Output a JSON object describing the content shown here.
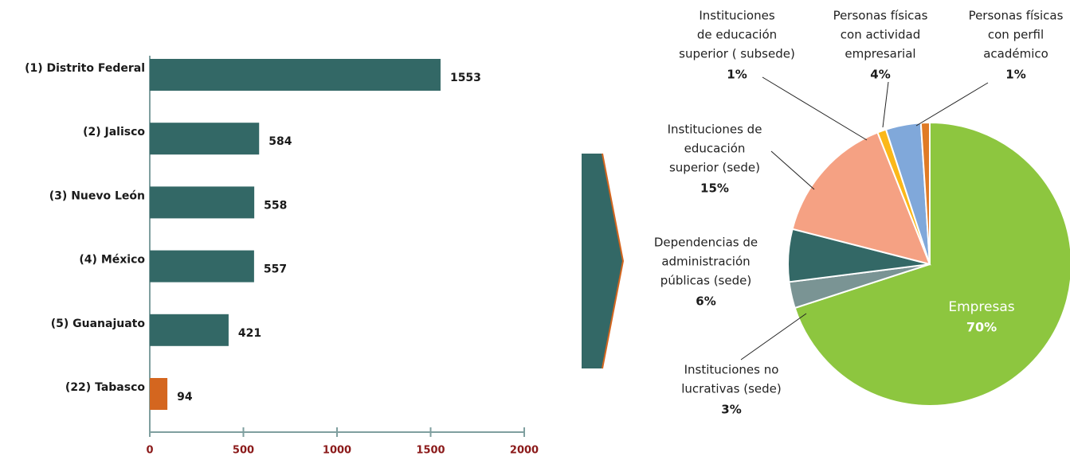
{
  "chart_data": [
    {
      "type": "bar",
      "orientation": "horizontal",
      "categories": [
        "(1) Distrito Federal",
        "(2) Jalisco",
        "(3) Nuevo León",
        "(4) México",
        "(5) Guanajuato",
        "(22) Tabasco"
      ],
      "values": [
        1553,
        584,
        558,
        557,
        421,
        94
      ],
      "colors": [
        "#336866",
        "#336866",
        "#336866",
        "#336866",
        "#336866",
        "#d4661f"
      ],
      "xlim": [
        0,
        2000
      ],
      "xticks": [
        0,
        500,
        1000,
        1500,
        2000
      ]
    },
    {
      "type": "pie",
      "categories": [
        [
          "Empresas"
        ],
        [
          "Instituciones no",
          "lucrativas (sede)"
        ],
        [
          "Dependencias de",
          "administración",
          "públicas (sede)"
        ],
        [
          "Instituciones de",
          "educación",
          "superior (sede)"
        ],
        [
          "Instituciones",
          "de educación",
          "superior ( subsede)"
        ],
        [
          "Personas físicas",
          "con actividad",
          "empresarial"
        ],
        [
          "Personas físicas",
          "con perfil",
          "académico"
        ]
      ],
      "values": [
        70,
        3,
        6,
        15,
        1,
        4,
        1
      ],
      "value_labels": [
        "70%",
        "3%",
        "6%",
        "15%",
        "1%",
        "4%",
        "1%"
      ],
      "colors": [
        "#8dc63f",
        "#7a9494",
        "#336866",
        "#f5a183",
        "#fbb819",
        "#80a8da",
        "#e07b26"
      ]
    }
  ]
}
